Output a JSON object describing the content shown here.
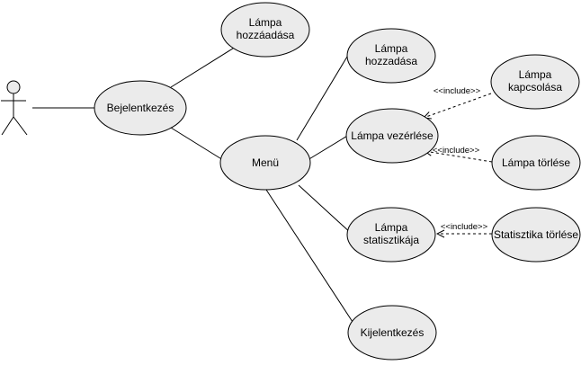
{
  "diagram": {
    "actor": {
      "label": ""
    },
    "use_cases": {
      "lampa_hozzaadasa_top": [
        "Lámpa",
        "hozzáadása"
      ],
      "bejelentkezes": [
        "Bejelentkezés"
      ],
      "lampa_hozzadasa": [
        "Lámpa",
        "hozzadása"
      ],
      "lampa_kapcsolasa": [
        "Lámpa",
        "kapcsolása"
      ],
      "lampa_vezerlese": [
        "Lámpa vezérlése"
      ],
      "menu": [
        "Menü"
      ],
      "lampa_torlese": [
        "Lámpa törlése"
      ],
      "lampa_statisztikaja": [
        "Lámpa",
        "statisztikája"
      ],
      "statisztika_torlese": [
        "Statisztika törlése"
      ],
      "kijelentkezes": [
        "Kijelentkezés"
      ]
    },
    "include_label": "<<include>>"
  }
}
